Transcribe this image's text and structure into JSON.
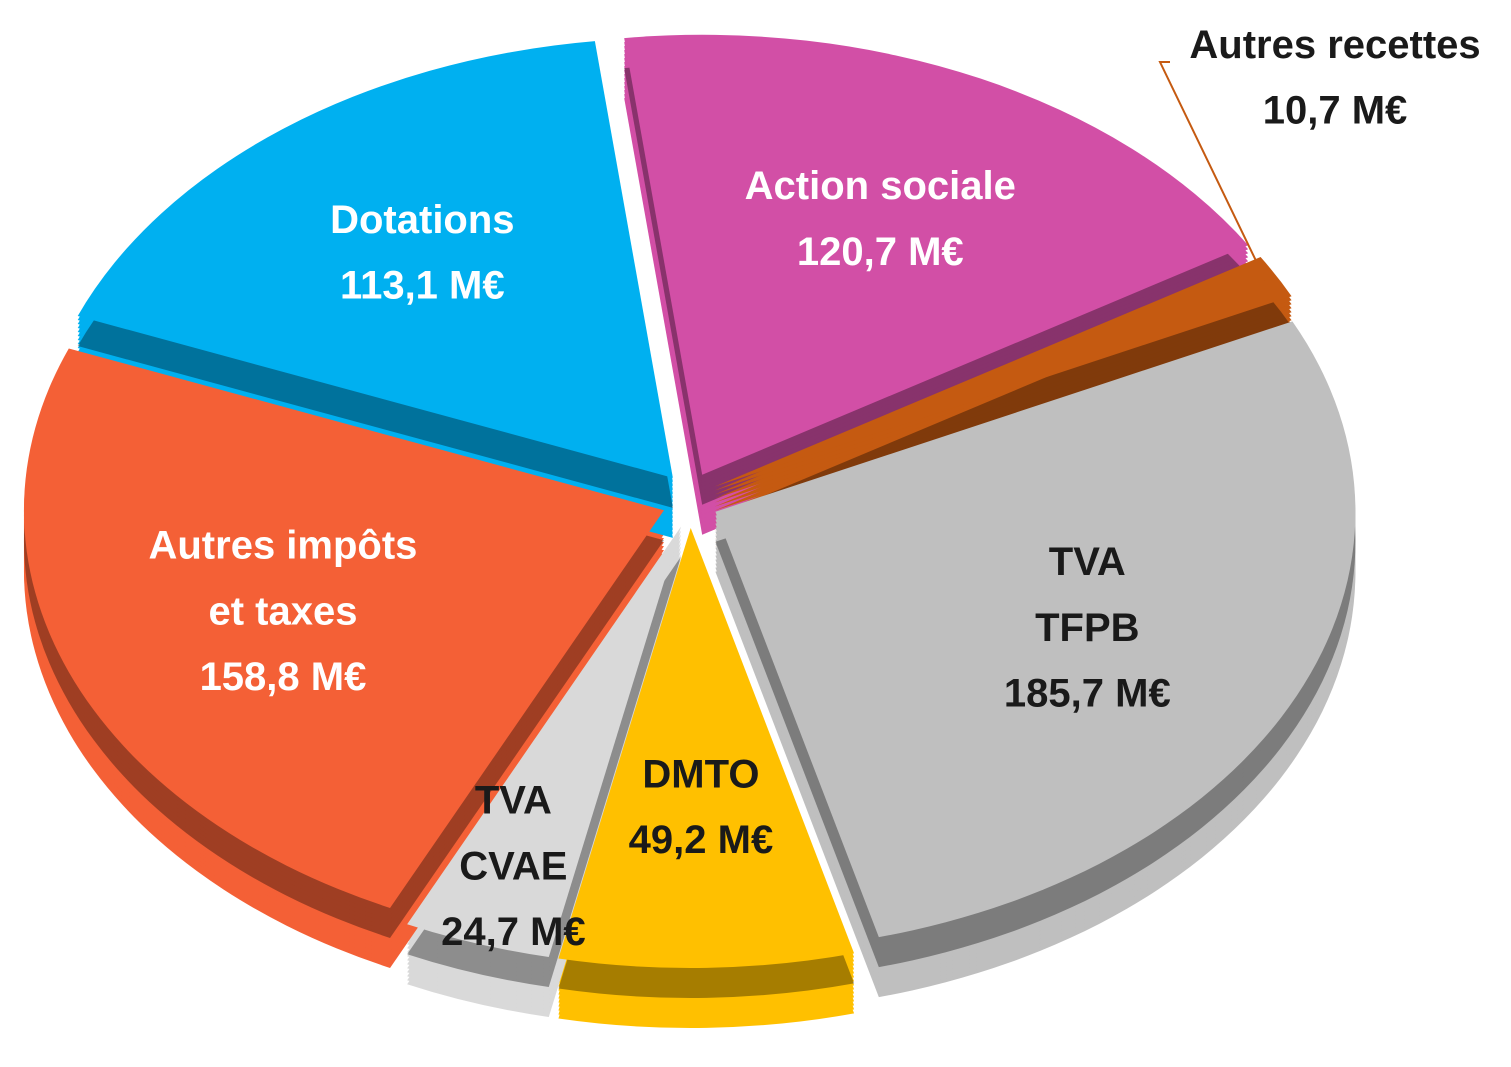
{
  "chart_data": {
    "type": "pie",
    "three_d": true,
    "exploded": true,
    "categories": [
      "Action sociale",
      "Autres recettes",
      "TVA\nTFPB",
      "DMTO",
      "TVA\nCVAE",
      "Autres impôts\net taxes",
      "Dotations"
    ],
    "values": [
      120.7,
      10.7,
      185.7,
      49.2,
      24.7,
      158.8,
      113.1
    ],
    "value_labels": [
      "120,7 M€",
      "10,7 M€",
      "185,7 M€",
      "49,2 M€",
      "24,7 M€",
      "158,8 M€",
      "113,1 M€"
    ],
    "colors": [
      "#d24fa6",
      "#c55a11",
      "#bfbfbf",
      "#ffc000",
      "#d9d9d9",
      "#f46036",
      "#00b0f0"
    ],
    "label_colors": [
      "#ffffff",
      "#1a1a1a",
      "#1a1a1a",
      "#1a1a1a",
      "#1a1a1a",
      "#ffffff",
      "#ffffff"
    ]
  }
}
